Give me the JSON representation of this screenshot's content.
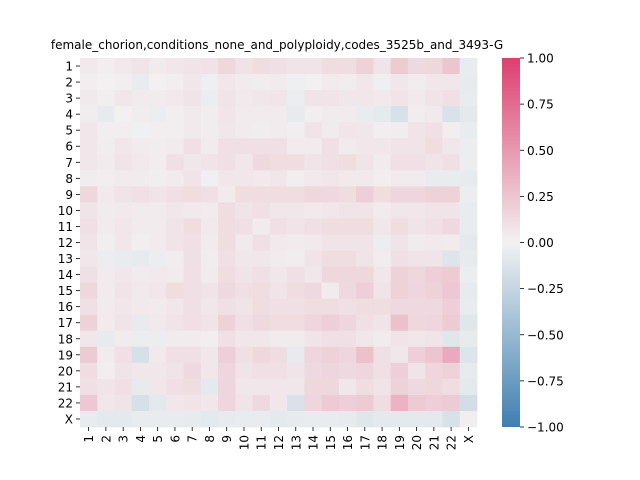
{
  "chart_data": {
    "type": "heatmap",
    "title": "female_chorion,conditions_none_and_polyploidy,codes_3525b_and_3493-G",
    "labels": [
      "1",
      "2",
      "3",
      "4",
      "5",
      "6",
      "7",
      "8",
      "9",
      "10",
      "11",
      "12",
      "13",
      "14",
      "15",
      "16",
      "17",
      "18",
      "19",
      "20",
      "21",
      "22",
      "X"
    ],
    "colorbar": {
      "min": -1.0,
      "max": 1.0,
      "ticks": [
        "1.00",
        "0.75",
        "0.50",
        "0.25",
        "0.00",
        "−0.25",
        "−0.50",
        "−0.75",
        "−1.00"
      ],
      "tick_values": [
        1.0,
        0.75,
        0.5,
        0.25,
        0.0,
        -0.25,
        -0.5,
        -0.75,
        -1.0
      ]
    },
    "colormap": {
      "negative": "#3f7fb0",
      "zero": "#f2f2f2",
      "positive": "#dd3f6f"
    },
    "values": [
      [
        0.05,
        0.02,
        0.05,
        0.08,
        0.04,
        0.06,
        0.08,
        0.09,
        0.15,
        0.09,
        0.12,
        0.1,
        0.08,
        0.08,
        0.12,
        0.12,
        0.18,
        0.08,
        0.22,
        0.14,
        0.15,
        0.25,
        -0.05
      ],
      [
        0.02,
        0.01,
        0.02,
        -0.05,
        0.01,
        0.02,
        0.06,
        -0.03,
        0.06,
        0.04,
        0.03,
        0.04,
        -0.03,
        0.01,
        0.04,
        0.03,
        0.06,
        -0.03,
        0.06,
        0.03,
        0.06,
        0.06,
        -0.06
      ],
      [
        0.05,
        0.02,
        0.06,
        0.04,
        0.04,
        0.05,
        0.08,
        -0.04,
        0.08,
        0.05,
        0.06,
        0.07,
        -0.04,
        0.08,
        0.08,
        0.06,
        0.06,
        0.05,
        0.08,
        0.05,
        0.08,
        0.1,
        -0.05
      ],
      [
        0.03,
        -0.06,
        0.01,
        0.03,
        -0.04,
        0.02,
        0.05,
        0.03,
        0.07,
        0.04,
        0.04,
        0.04,
        -0.06,
        0.02,
        0.04,
        0.04,
        -0.05,
        -0.07,
        -0.15,
        0.03,
        0.05,
        -0.14,
        -0.08
      ],
      [
        0.06,
        0.02,
        0.02,
        -0.02,
        0.02,
        0.02,
        0.05,
        0.03,
        0.06,
        0.04,
        0.03,
        0.04,
        0.02,
        0.08,
        0.04,
        0.07,
        0.06,
        0.02,
        0.03,
        0.08,
        0.1,
        0.02,
        -0.05
      ],
      [
        0.06,
        0.03,
        0.06,
        0.04,
        0.03,
        0.04,
        0.1,
        0.04,
        0.1,
        0.1,
        0.1,
        0.1,
        0.04,
        0.04,
        0.1,
        0.04,
        0.06,
        0.06,
        0.08,
        0.08,
        0.12,
        0.06,
        -0.04
      ],
      [
        0.06,
        0.04,
        0.08,
        0.05,
        0.03,
        0.1,
        0.06,
        0.08,
        0.1,
        0.06,
        0.14,
        0.12,
        0.12,
        0.08,
        0.1,
        0.12,
        0.08,
        0.04,
        0.1,
        0.1,
        0.08,
        0.1,
        -0.04
      ],
      [
        0.03,
        0.02,
        0.04,
        0.04,
        0.02,
        0.04,
        0.08,
        -0.02,
        0.06,
        0.06,
        0.05,
        0.06,
        0.02,
        0.05,
        0.06,
        0.05,
        0.05,
        0.02,
        0.04,
        0.04,
        -0.05,
        -0.05,
        -0.06
      ],
      [
        0.15,
        0.05,
        0.08,
        0.1,
        0.08,
        0.1,
        0.12,
        0.1,
        0.04,
        0.12,
        0.12,
        0.12,
        0.12,
        0.15,
        0.14,
        0.12,
        0.2,
        0.12,
        0.16,
        0.16,
        0.18,
        0.18,
        -0.04
      ],
      [
        0.08,
        0.04,
        0.05,
        0.04,
        0.04,
        0.06,
        0.05,
        0.04,
        0.12,
        0.08,
        0.1,
        0.06,
        0.06,
        0.05,
        0.06,
        0.08,
        0.08,
        0.04,
        0.06,
        0.06,
        0.08,
        0.08,
        -0.05
      ],
      [
        0.1,
        0.04,
        0.06,
        0.04,
        0.04,
        0.08,
        0.12,
        0.05,
        0.12,
        0.1,
        0.04,
        0.1,
        0.08,
        0.1,
        0.12,
        0.12,
        0.12,
        0.06,
        0.12,
        0.08,
        0.1,
        0.14,
        -0.05
      ],
      [
        0.08,
        0.02,
        0.06,
        0.02,
        0.04,
        0.08,
        0.1,
        0.04,
        0.12,
        0.05,
        0.1,
        0.05,
        0.04,
        0.05,
        0.08,
        0.08,
        0.08,
        -0.04,
        0.08,
        0.04,
        0.05,
        0.04,
        -0.08
      ],
      [
        0.06,
        -0.04,
        -0.05,
        -0.06,
        -0.04,
        0.03,
        0.1,
        0.03,
        0.1,
        0.06,
        0.06,
        0.04,
        0.03,
        0.08,
        0.12,
        0.12,
        0.08,
        0.03,
        0.1,
        0.08,
        0.08,
        -0.12,
        -0.06
      ],
      [
        0.1,
        0.04,
        0.06,
        0.04,
        0.05,
        0.04,
        0.1,
        0.04,
        0.12,
        0.08,
        0.1,
        0.06,
        0.1,
        0.06,
        0.15,
        0.15,
        0.15,
        0.06,
        0.18,
        0.15,
        0.2,
        0.22,
        -0.04
      ],
      [
        0.15,
        0.04,
        0.08,
        0.05,
        0.06,
        0.12,
        0.1,
        0.08,
        0.14,
        0.1,
        0.12,
        0.08,
        0.12,
        0.14,
        0.04,
        0.14,
        0.2,
        0.08,
        0.18,
        0.16,
        0.18,
        0.24,
        -0.06
      ],
      [
        0.1,
        0.04,
        0.06,
        0.05,
        0.04,
        0.06,
        0.1,
        0.06,
        0.1,
        0.08,
        0.12,
        0.1,
        0.1,
        0.12,
        0.12,
        0.1,
        0.12,
        0.12,
        0.14,
        0.14,
        0.14,
        0.2,
        -0.05
      ],
      [
        0.18,
        0.04,
        0.08,
        -0.06,
        0.05,
        0.08,
        0.1,
        0.08,
        0.18,
        0.1,
        0.14,
        0.12,
        0.12,
        0.16,
        0.2,
        0.16,
        0.1,
        0.08,
        0.28,
        0.15,
        0.16,
        0.22,
        -0.1
      ],
      [
        0.06,
        -0.06,
        0.04,
        -0.04,
        -0.04,
        0.04,
        0.04,
        0.02,
        0.1,
        0.06,
        0.06,
        0.04,
        0.04,
        0.08,
        0.1,
        0.1,
        0.06,
        0.04,
        0.08,
        0.06,
        0.08,
        -0.1,
        -0.06
      ],
      [
        0.22,
        0.04,
        0.1,
        -0.16,
        0.05,
        0.1,
        0.1,
        0.06,
        0.2,
        0.1,
        0.15,
        0.12,
        -0.06,
        0.16,
        0.18,
        0.16,
        0.28,
        0.1,
        0.06,
        0.2,
        0.25,
        0.4,
        -0.12
      ],
      [
        0.12,
        0.02,
        0.08,
        0.06,
        0.06,
        0.08,
        0.14,
        0.06,
        0.16,
        0.08,
        0.1,
        0.1,
        0.08,
        0.14,
        0.16,
        0.14,
        0.16,
        0.1,
        0.2,
        0.08,
        0.16,
        0.18,
        -0.06
      ],
      [
        0.1,
        0.08,
        0.1,
        -0.06,
        0.06,
        0.1,
        0.12,
        -0.08,
        0.16,
        0.06,
        0.06,
        0.06,
        0.06,
        0.15,
        0.15,
        0.06,
        0.12,
        0.08,
        0.18,
        0.14,
        0.15,
        0.12,
        -0.08
      ],
      [
        0.24,
        0.06,
        0.08,
        -0.16,
        -0.08,
        0.06,
        0.08,
        0.06,
        0.16,
        0.08,
        0.14,
        0.06,
        -0.14,
        0.16,
        0.22,
        0.2,
        0.22,
        0.12,
        0.35,
        0.22,
        0.2,
        0.22,
        -0.18
      ],
      [
        -0.05,
        -0.08,
        -0.08,
        -0.05,
        -0.05,
        -0.05,
        -0.06,
        -0.08,
        -0.06,
        -0.05,
        -0.05,
        -0.08,
        -0.06,
        -0.05,
        -0.05,
        -0.06,
        -0.1,
        -0.08,
        -0.08,
        -0.08,
        -0.08,
        -0.15,
        0.02
      ]
    ]
  }
}
